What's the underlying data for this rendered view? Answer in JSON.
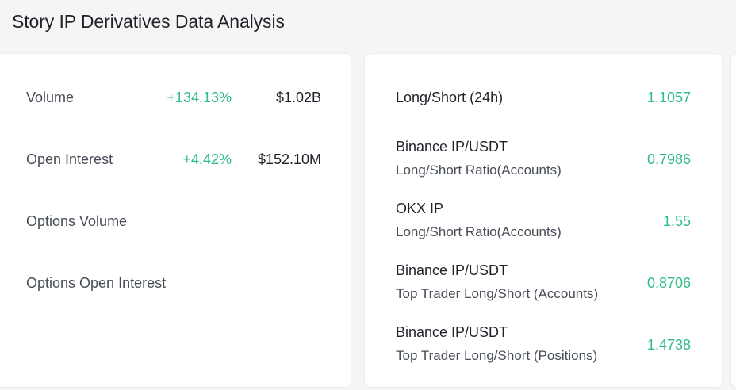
{
  "header": {
    "title": "Story IP Derivatives Data Analysis"
  },
  "metrics": [
    {
      "label": "Volume",
      "change": "+134.13%",
      "value": "$1.02B"
    },
    {
      "label": "Open Interest",
      "change": "+4.42%",
      "value": "$152.10M"
    },
    {
      "label": "Options Volume",
      "change": "",
      "value": ""
    },
    {
      "label": "Options Open Interest",
      "change": "",
      "value": ""
    }
  ],
  "ratios": [
    {
      "title": "Long/Short (24h)",
      "subtitle": "",
      "value": "1.1057"
    },
    {
      "title": "Binance IP/USDT",
      "subtitle": "Long/Short Ratio(Accounts)",
      "value": "0.7986"
    },
    {
      "title": "OKX IP",
      "subtitle": "Long/Short Ratio(Accounts)",
      "value": "1.55"
    },
    {
      "title": "Binance IP/USDT",
      "subtitle": "Top Trader Long/Short (Accounts)",
      "value": "0.8706"
    },
    {
      "title": "Binance IP/USDT",
      "subtitle": "Top Trader Long/Short (Positions)",
      "value": "1.4738"
    }
  ],
  "colors": {
    "positive": "#2ebd85",
    "text": "#1e2329",
    "muted": "#474d57"
  }
}
